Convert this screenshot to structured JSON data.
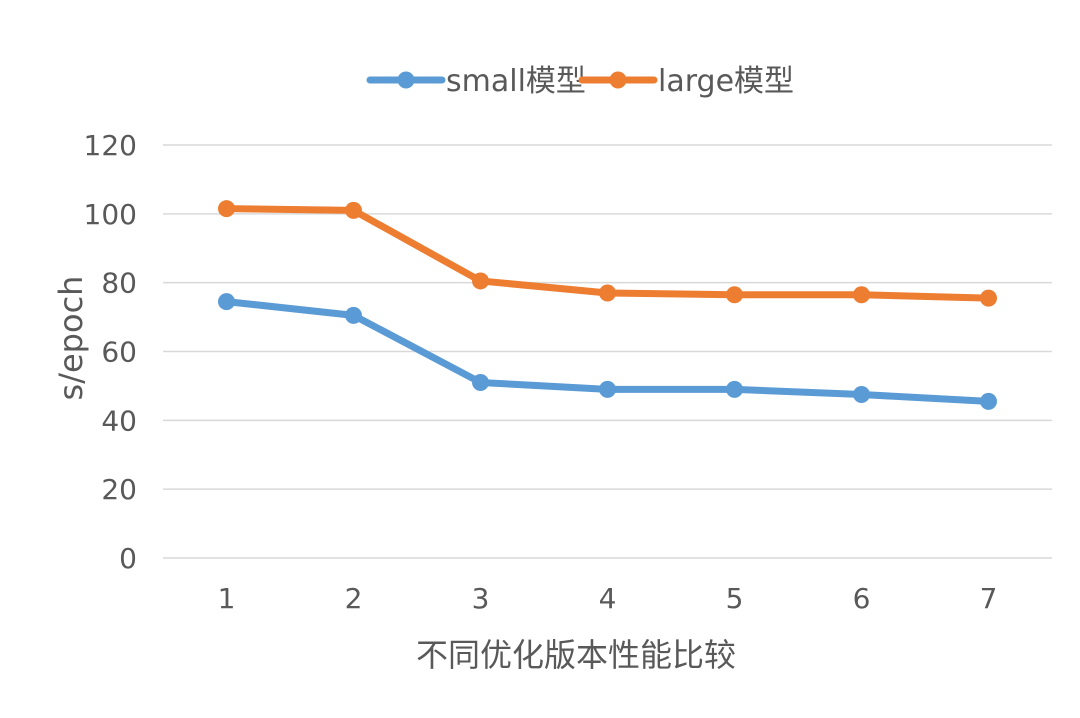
{
  "chart_data": {
    "type": "line",
    "title": "",
    "xlabel": "不同优化版本性能比较",
    "ylabel": "s/epoch",
    "categories": [
      "1",
      "2",
      "3",
      "4",
      "5",
      "6",
      "7"
    ],
    "ylim": [
      0,
      120
    ],
    "yticks": [
      0,
      20,
      40,
      60,
      80,
      100,
      120
    ],
    "grid": true,
    "legend_position": "top",
    "series": [
      {
        "name": "small模型",
        "color": "#5B9BD5",
        "values": [
          74.5,
          70.5,
          51,
          49,
          49,
          47.5,
          45.5
        ]
      },
      {
        "name": "large模型",
        "color": "#ED7D31",
        "values": [
          101.5,
          101,
          80.5,
          77,
          76.5,
          76.5,
          75.5
        ]
      }
    ]
  }
}
